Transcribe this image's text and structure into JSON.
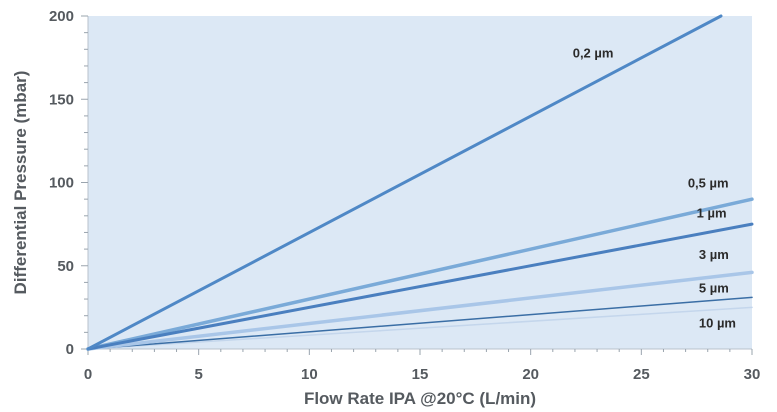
{
  "chart_data": {
    "type": "line",
    "xlabel": "Flow Rate IPA @20°C (L/min)",
    "ylabel": "Differential Pressure (mbar)",
    "xlim": [
      0,
      30
    ],
    "ylim": [
      0,
      200
    ],
    "xticks": [
      "0",
      "5",
      "10",
      "15",
      "20",
      "25",
      "30"
    ],
    "yticks": [
      "0",
      "50",
      "100",
      "150",
      "200"
    ],
    "grid": false,
    "plot_background": "#dce8f5",
    "series": [
      {
        "name": "0,2 µm",
        "color": "#4f88c6",
        "width": 3,
        "x": [
          0,
          28.6
        ],
        "y": [
          0,
          200
        ],
        "label_at": [
          21.9,
          175
        ]
      },
      {
        "name": "0,5 µm",
        "color": "#7aaad8",
        "width": 3.5,
        "x": [
          0,
          30
        ],
        "y": [
          0,
          90
        ],
        "label_at": [
          27.1,
          97
        ]
      },
      {
        "name": "1 µm",
        "color": "#4a7fbf",
        "width": 3,
        "x": [
          0,
          30
        ],
        "y": [
          0,
          75
        ],
        "label_at": [
          27.5,
          79
        ]
      },
      {
        "name": "3 µm",
        "color": "#a9c6e8",
        "width": 3.5,
        "x": [
          0,
          30
        ],
        "y": [
          0,
          46
        ],
        "label_at": [
          27.6,
          54
        ]
      },
      {
        "name": "5 µm",
        "color": "#3a6ea5",
        "width": 1.5,
        "x": [
          0,
          30
        ],
        "y": [
          0,
          31
        ],
        "label_at": [
          27.6,
          34
        ]
      },
      {
        "name": "10 µm",
        "color": "#c4d6ec",
        "width": 1.5,
        "x": [
          0,
          30
        ],
        "y": [
          0,
          25
        ],
        "label_at": [
          27.6,
          13
        ]
      }
    ]
  }
}
